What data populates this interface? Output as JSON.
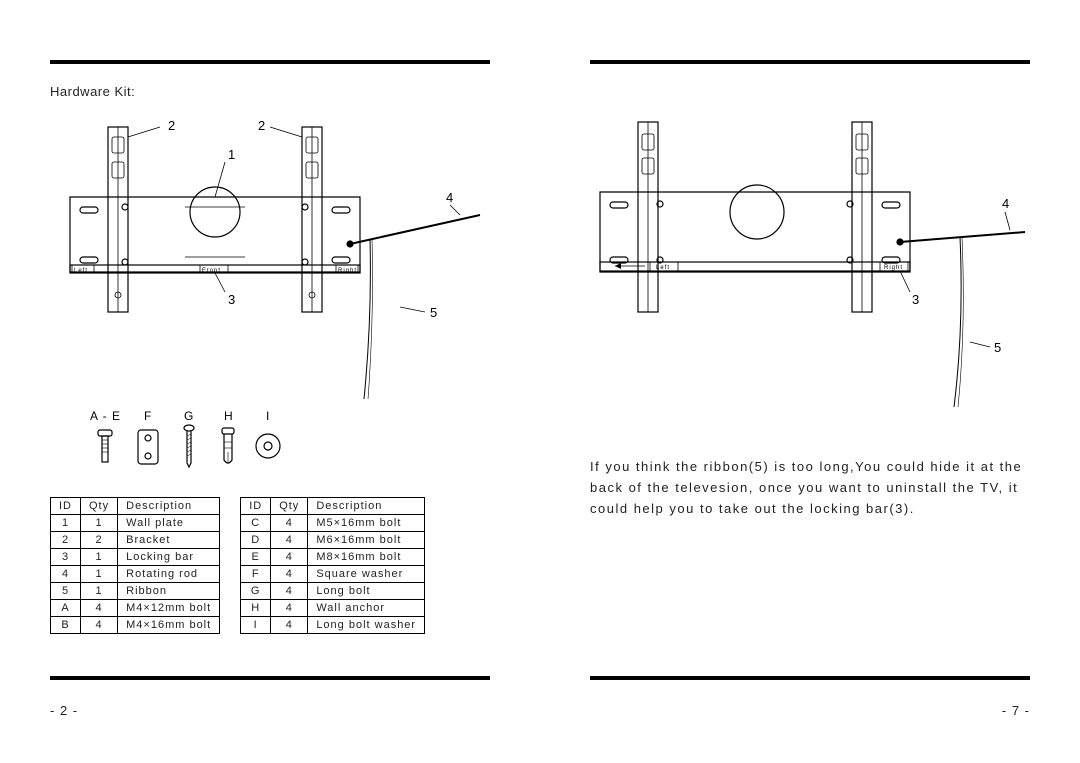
{
  "leftPage": {
    "pageNumber": "- 2 -",
    "title": "Hardware Kit:",
    "diagram": {
      "callouts": {
        "topLeft": "2",
        "topRight": "2",
        "mid": "1",
        "rodLabel": "4",
        "barLabel": "3",
        "ribbonLabel": "5"
      },
      "plateLabels": {
        "left": "Left",
        "front": "Front",
        "right": "Right"
      }
    },
    "hardwareIcons": {
      "labelAE": "A - E",
      "labelF": "F",
      "labelG": "G",
      "labelH": "H",
      "labelI": "I"
    },
    "partsTable1": {
      "headers": {
        "id": "ID",
        "qty": "Qty",
        "desc": "Description"
      },
      "rows": [
        {
          "id": "1",
          "qty": "1",
          "desc": "Wall plate"
        },
        {
          "id": "2",
          "qty": "2",
          "desc": "Bracket"
        },
        {
          "id": "3",
          "qty": "1",
          "desc": "Locking bar"
        },
        {
          "id": "4",
          "qty": "1",
          "desc": "Rotating rod"
        },
        {
          "id": "5",
          "qty": "1",
          "desc": "Ribbon"
        },
        {
          "id": "A",
          "qty": "4",
          "desc": "M4×12mm bolt"
        },
        {
          "id": "B",
          "qty": "4",
          "desc": "M4×16mm bolt"
        }
      ]
    },
    "partsTable2": {
      "headers": {
        "id": "ID",
        "qty": "Qty",
        "desc": "Description"
      },
      "rows": [
        {
          "id": "C",
          "qty": "4",
          "desc": "M5×16mm bolt"
        },
        {
          "id": "D",
          "qty": "4",
          "desc": "M6×16mm bolt"
        },
        {
          "id": "E",
          "qty": "4",
          "desc": "M8×16mm bolt"
        },
        {
          "id": "F",
          "qty": "4",
          "desc": "Square washer"
        },
        {
          "id": "G",
          "qty": "4",
          "desc": "Long bolt"
        },
        {
          "id": "H",
          "qty": "4",
          "desc": "Wall anchor"
        },
        {
          "id": "I",
          "qty": "4",
          "desc": "Long bolt washer"
        }
      ]
    }
  },
  "rightPage": {
    "pageNumber": "- 7 -",
    "diagram": {
      "callouts": {
        "rodLabel": "4",
        "barLabel": "3",
        "ribbonLabel": "5"
      },
      "plateLabels": {
        "left": "Left",
        "right": "Right"
      }
    },
    "paragraph": "If you think the ribbon(5) is too long,You could hide it at the back of the televesion, once you want to uninstall the TV, it could help you to take out the locking bar(3)."
  },
  "style": {
    "strokeColor": "#000000",
    "strokeWidth": 1.2,
    "thinStroke": 0.8
  }
}
